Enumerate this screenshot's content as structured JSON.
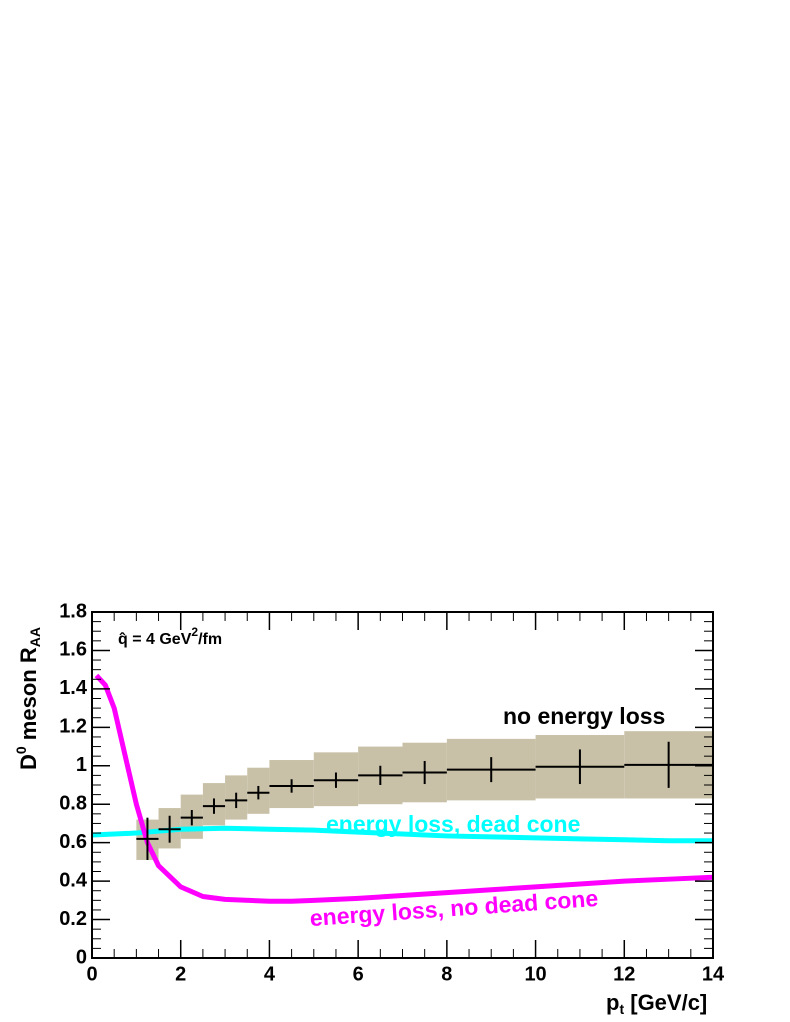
{
  "chart_data": {
    "type": "rates",
    "x_label": [
      "p",
      "t",
      " [GeV/c]"
    ],
    "y_label": [
      "D",
      "0",
      " meson R",
      "AA"
    ],
    "annotation": [
      "q̂ = 4 GeV",
      "2",
      "/fm"
    ],
    "xlim": [
      0,
      14
    ],
    "ylim": [
      0,
      1.8
    ],
    "xticks": [
      0,
      2,
      4,
      6,
      8,
      10,
      12,
      14
    ],
    "yticks": [
      0,
      0.2,
      0.4,
      0.6,
      0.8,
      1,
      1.2,
      1.4,
      1.6,
      1.8
    ],
    "measurement": {
      "name": "no energy loss",
      "color": "#000000",
      "band_color": "#c9c1a7",
      "x": [
        1.25,
        1.75,
        2.25,
        2.75,
        3.25,
        3.75,
        4.5,
        5.5,
        6.5,
        7.5,
        9,
        11,
        13
      ],
      "bin_low": [
        1,
        1.5,
        2,
        2.5,
        3,
        3.5,
        4,
        5,
        6,
        7,
        8,
        10,
        12
      ],
      "bin_high": [
        1.5,
        2,
        2.5,
        3,
        3.5,
        4,
        5,
        6,
        7,
        8,
        10,
        12,
        14
      ],
      "values": [
        0.62,
        0.67,
        0.73,
        0.79,
        0.82,
        0.86,
        0.895,
        0.925,
        0.95,
        0.965,
        0.98,
        0.995,
        1.005
      ],
      "errors": [
        0.11,
        0.07,
        0.04,
        0.04,
        0.04,
        0.035,
        0.035,
        0.04,
        0.05,
        0.06,
        0.065,
        0.09,
        0.12
      ],
      "band_low": [
        0.51,
        0.57,
        0.62,
        0.69,
        0.72,
        0.75,
        0.78,
        0.79,
        0.8,
        0.81,
        0.82,
        0.83,
        0.83
      ],
      "band_high": [
        0.72,
        0.78,
        0.85,
        0.91,
        0.95,
        0.99,
        1.03,
        1.07,
        1.1,
        1.12,
        1.14,
        1.16,
        1.18
      ]
    },
    "series": [
      {
        "name": "energy loss, dead cone",
        "color": "#00ffff",
        "x": [
          0,
          1,
          2,
          3,
          4,
          5,
          6,
          7,
          8,
          9,
          10,
          11,
          12,
          13,
          14
        ],
        "values": [
          0.64,
          0.65,
          0.67,
          0.675,
          0.67,
          0.665,
          0.655,
          0.645,
          0.635,
          0.63,
          0.625,
          0.62,
          0.615,
          0.61,
          0.61
        ]
      },
      {
        "name": "energy loss, no dead cone",
        "color": "#ff00ff",
        "x": [
          0.1,
          0.3,
          0.5,
          0.75,
          1,
          1.25,
          1.5,
          2,
          2.5,
          3,
          4,
          4.5,
          5,
          6,
          7,
          8,
          9,
          10,
          11,
          12,
          13,
          14
        ],
        "values": [
          1.47,
          1.42,
          1.3,
          1.05,
          0.8,
          0.6,
          0.48,
          0.37,
          0.32,
          0.305,
          0.295,
          0.295,
          0.3,
          0.31,
          0.325,
          0.34,
          0.355,
          0.37,
          0.385,
          0.4,
          0.41,
          0.42
        ]
      }
    ]
  }
}
